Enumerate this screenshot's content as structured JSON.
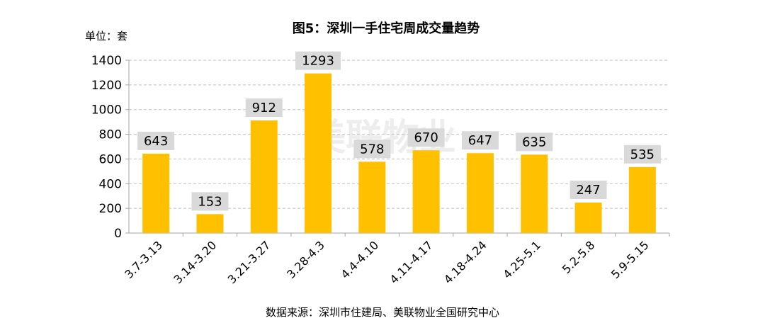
{
  "chart_data": {
    "type": "bar",
    "title": "图5：深圳一手住宅周成交量趋势",
    "unit_label": "单位：套",
    "source": "数据来源：深圳市住建局、美联物业全国研究中心",
    "watermark": "美联物业",
    "categories": [
      "3.7-3.13",
      "3.14-3.20",
      "3.21-3.27",
      "3.28-4.3",
      "4.4-4.10",
      "4.11-4.17",
      "4.18-4.24",
      "4.25-5.1",
      "5.2-5.8",
      "5.9-5.15"
    ],
    "values": [
      643,
      153,
      912,
      1293,
      578,
      670,
      647,
      635,
      247,
      535
    ],
    "ylim": [
      0,
      1400
    ],
    "yticks": [
      0,
      200,
      400,
      600,
      800,
      1000,
      1200,
      1400
    ],
    "grid": true,
    "data_labels": true,
    "colors": {
      "bar": "#FFC000",
      "label_bg": "#D9D9D9",
      "grid": "#BFBFBF",
      "axis": "#A6A6A6",
      "text": "#000000"
    }
  }
}
